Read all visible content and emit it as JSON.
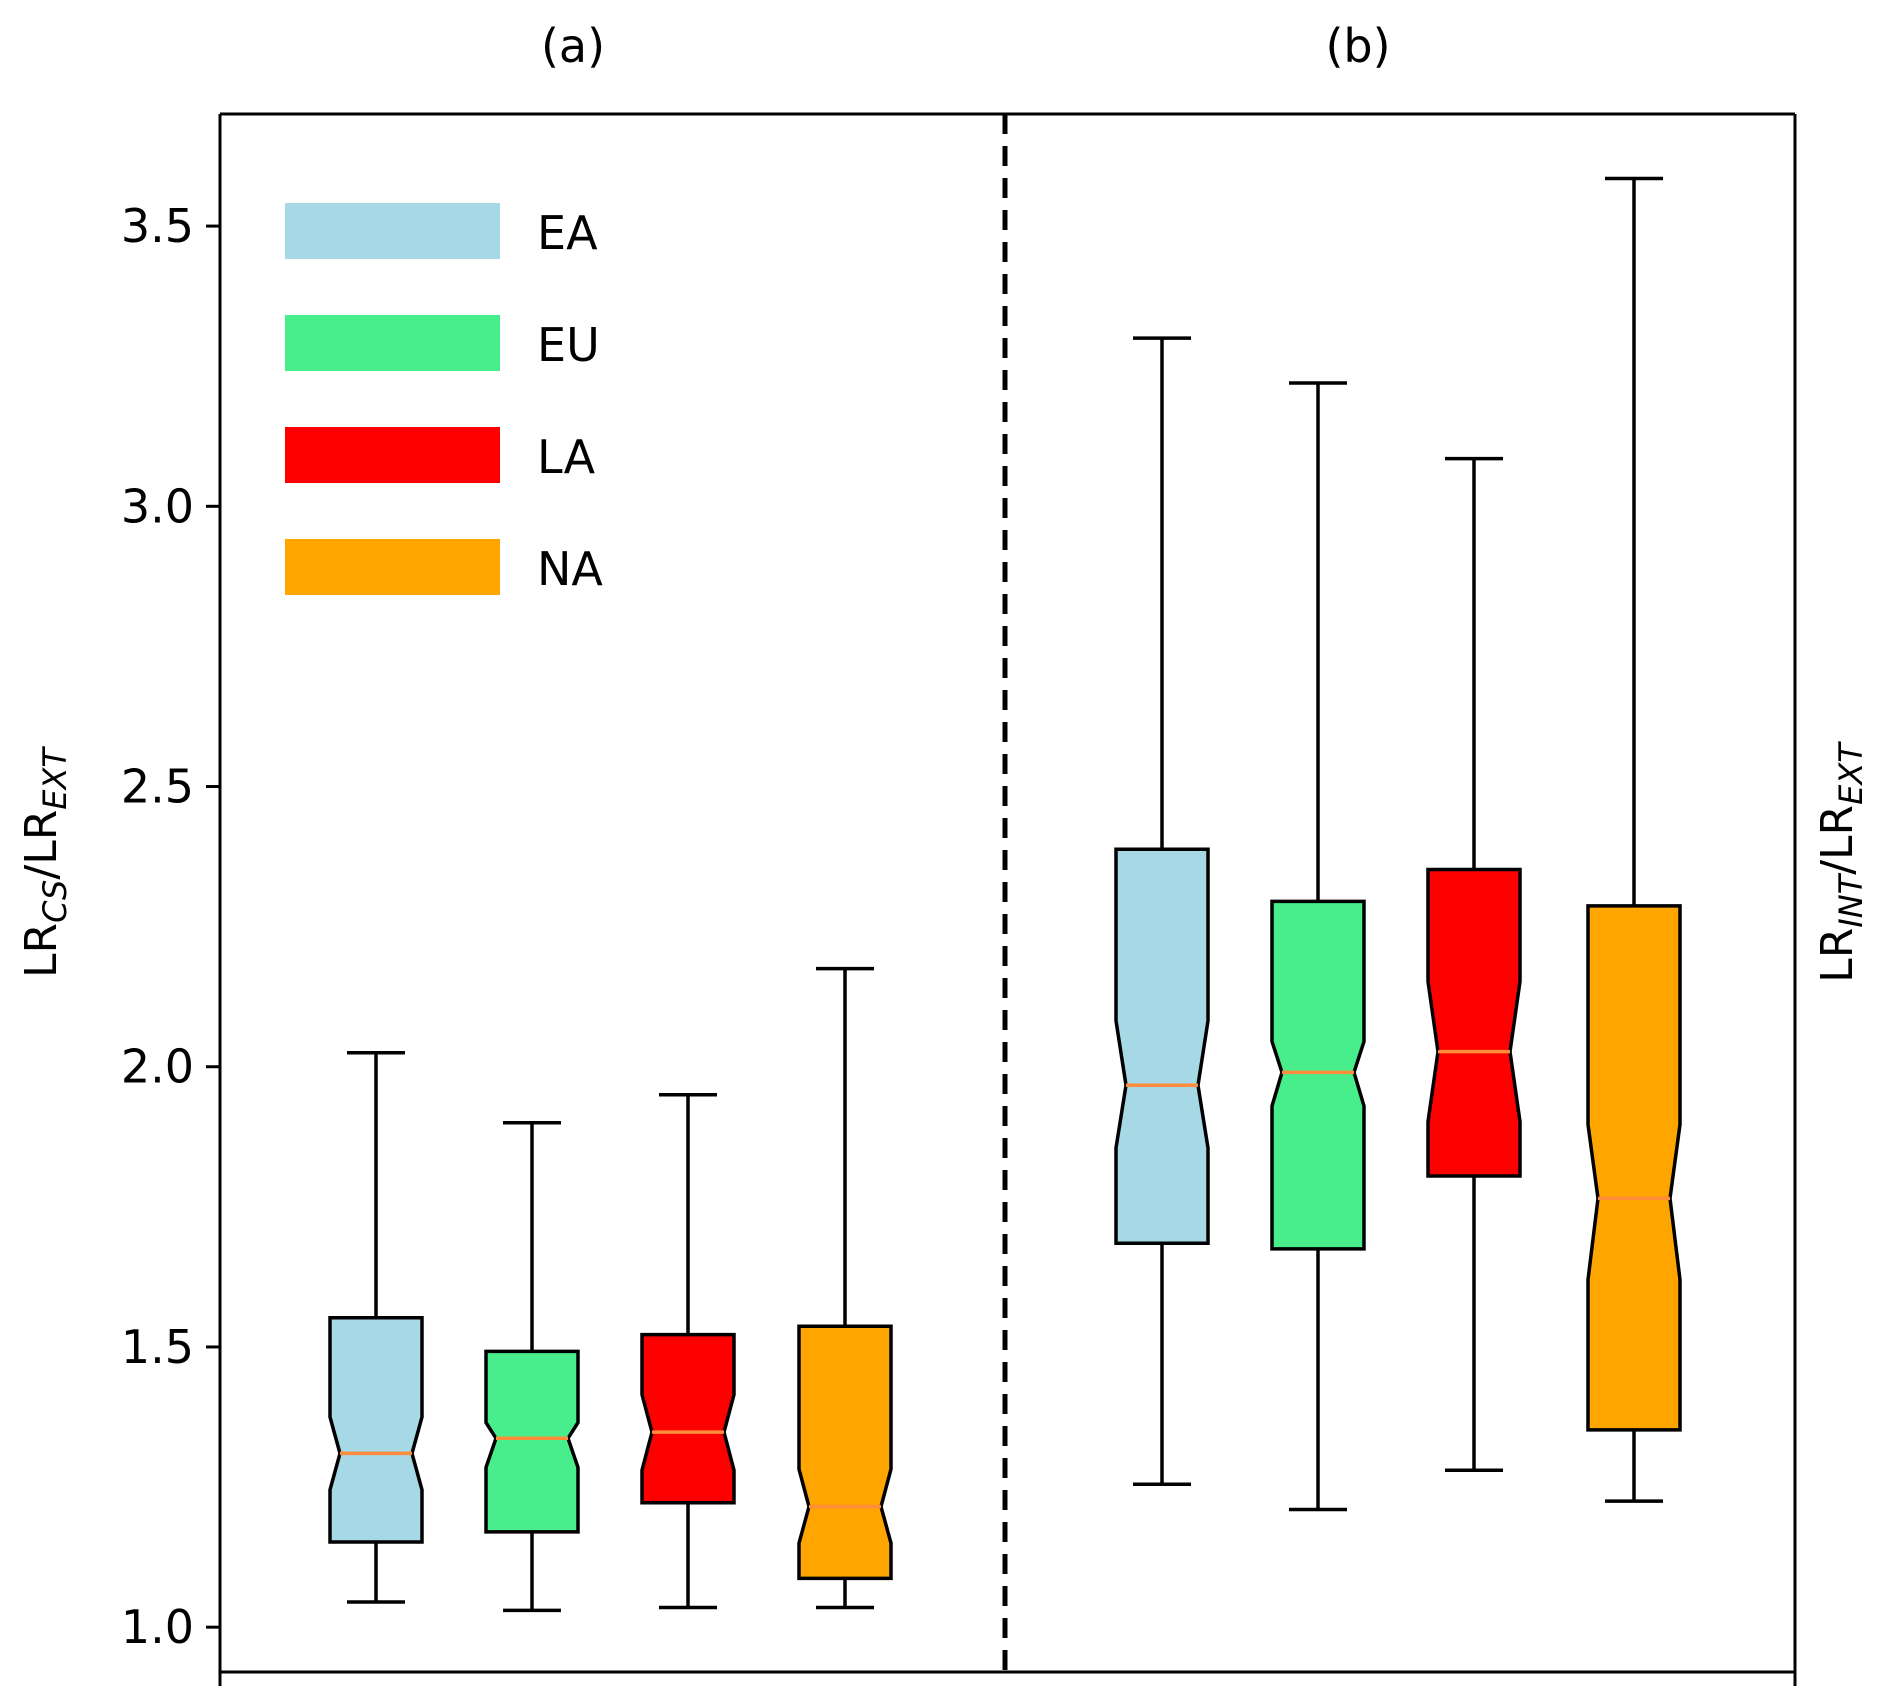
{
  "chart_data": {
    "type": "boxplot",
    "notched": true,
    "panels": [
      {
        "label": "(a)",
        "ylabel_main": "LR",
        "ylabel_sub": "CS",
        "ylabel_tail": "/LR",
        "ylabel_sub2": "EXT"
      },
      {
        "label": "(b)",
        "ylabel_main": "LR",
        "ylabel_sub": "INT",
        "ylabel_tail": "/LR",
        "ylabel_sub2": "EXT"
      }
    ],
    "y_range": [
      0.92,
      3.7
    ],
    "y_ticks": [
      1.0,
      1.5,
      2.0,
      2.5,
      3.0,
      3.5
    ],
    "y_tick_labels": [
      "1.0",
      "1.5",
      "2.0",
      "2.5",
      "3.0",
      "3.5"
    ],
    "legend": {
      "position": "top-left",
      "entries": [
        {
          "label": "EA",
          "color": "#a6d8e6"
        },
        {
          "label": "EU",
          "color": "#48ee8c"
        },
        {
          "label": "LA",
          "color": "#ff0000"
        },
        {
          "label": "NA",
          "color": "#ffa500"
        }
      ]
    },
    "median_color": "#ff8c3a",
    "series": [
      {
        "panel": 0,
        "name": "EA",
        "whislo": 1.045,
        "q1": 1.152,
        "notch_lo": 1.245,
        "med": 1.31,
        "notch_hi": 1.375,
        "q3": 1.552,
        "whishi": 2.025
      },
      {
        "panel": 0,
        "name": "EU",
        "whislo": 1.03,
        "q1": 1.17,
        "notch_lo": 1.285,
        "med": 1.337,
        "notch_hi": 1.365,
        "q3": 1.492,
        "whishi": 1.9
      },
      {
        "panel": 0,
        "name": "LA",
        "whislo": 1.035,
        "q1": 1.222,
        "notch_lo": 1.28,
        "med": 1.348,
        "notch_hi": 1.415,
        "q3": 1.522,
        "whishi": 1.95
      },
      {
        "panel": 0,
        "name": "NA",
        "whislo": 1.035,
        "q1": 1.087,
        "notch_lo": 1.15,
        "med": 1.215,
        "notch_hi": 1.282,
        "q3": 1.537,
        "whishi": 2.175
      },
      {
        "panel": 1,
        "name": "EA",
        "whislo": 1.255,
        "q1": 1.685,
        "notch_lo": 1.855,
        "med": 1.967,
        "notch_hi": 2.082,
        "q3": 2.388,
        "whishi": 3.3
      },
      {
        "panel": 1,
        "name": "EU",
        "whislo": 1.21,
        "q1": 1.675,
        "notch_lo": 1.93,
        "med": 1.99,
        "notch_hi": 2.045,
        "q3": 2.295,
        "whishi": 3.22
      },
      {
        "panel": 1,
        "name": "LA",
        "whislo": 1.28,
        "q1": 1.805,
        "notch_lo": 1.902,
        "med": 2.027,
        "notch_hi": 2.152,
        "q3": 2.352,
        "whishi": 3.085
      },
      {
        "panel": 1,
        "name": "NA",
        "whislo": 1.225,
        "q1": 1.352,
        "notch_lo": 1.62,
        "med": 1.765,
        "notch_hi": 1.897,
        "q3": 2.287,
        "whishi": 3.585
      }
    ]
  }
}
